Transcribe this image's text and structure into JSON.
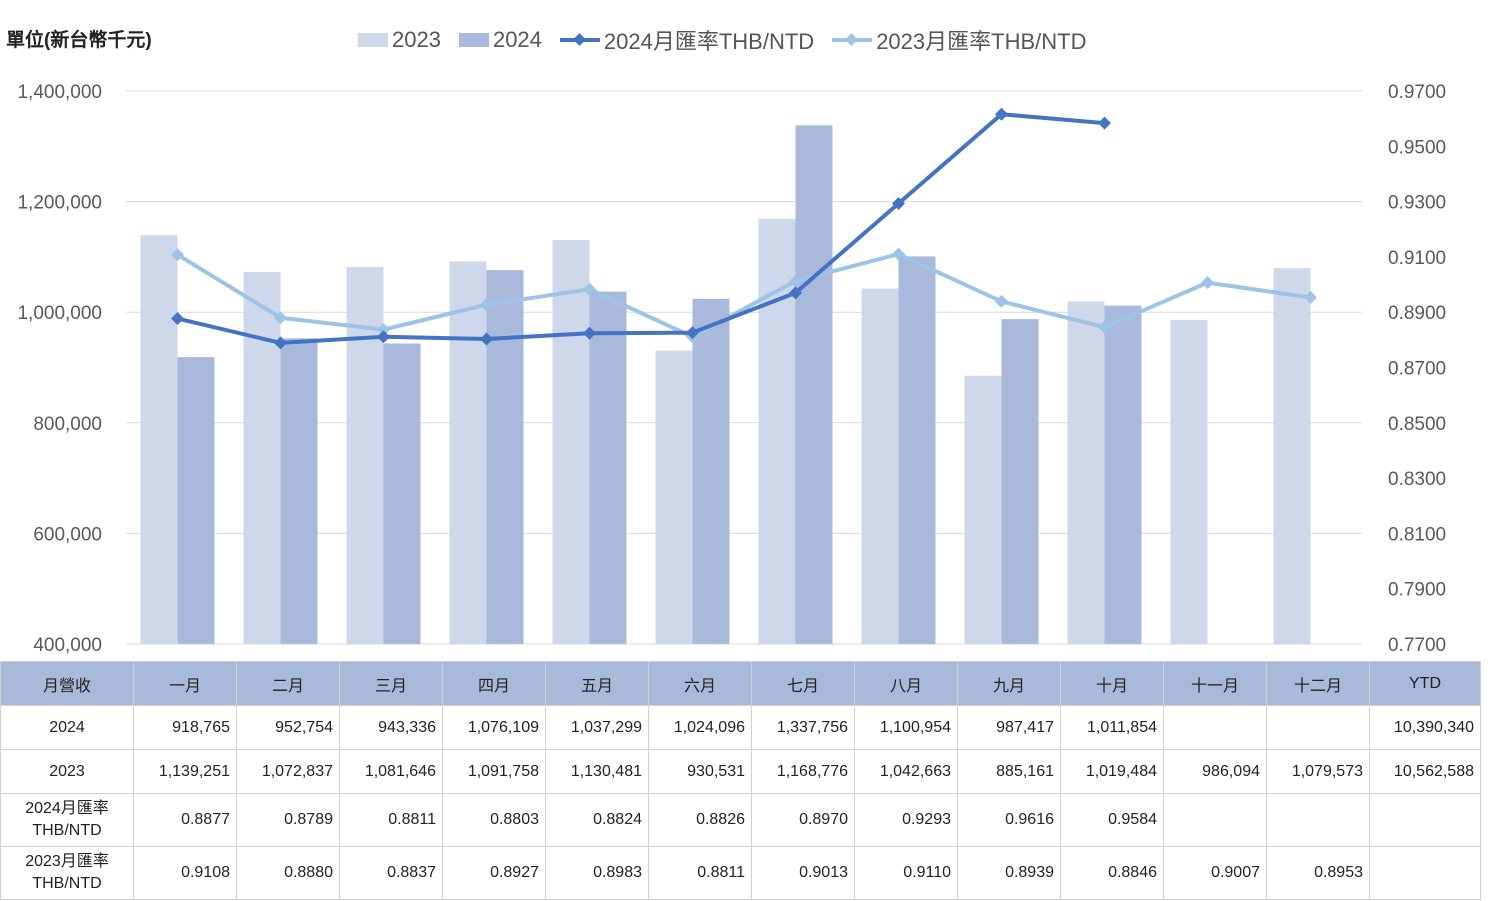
{
  "header": {
    "unit_label": "單位(新台幣千元)"
  },
  "legend": [
    {
      "label": "2023",
      "kind": "bar",
      "color": "#ced8ea"
    },
    {
      "label": "2024",
      "kind": "bar",
      "color": "#a9b9dc"
    },
    {
      "label": "2024月匯率THB/NTD",
      "kind": "line",
      "color": "#4472c4"
    },
    {
      "label": "2023月匯率THB/NTD",
      "kind": "line",
      "color": "#9dc3e6"
    }
  ],
  "chart_data": {
    "type": "bar",
    "categories": [
      "一月",
      "二月",
      "三月",
      "四月",
      "五月",
      "六月",
      "七月",
      "八月",
      "九月",
      "十月",
      "十一月",
      "十二月"
    ],
    "series": [
      {
        "name": "2023",
        "type": "bar",
        "axis": "left",
        "color": "#ced8ea",
        "values": [
          1139251,
          1072837,
          1081646,
          1091758,
          1130481,
          930531,
          1168776,
          1042663,
          885161,
          1019484,
          986094,
          1079573
        ]
      },
      {
        "name": "2024",
        "type": "bar",
        "axis": "left",
        "color": "#a9b9dc",
        "values": [
          918765,
          952754,
          943336,
          1076109,
          1037299,
          1024096,
          1337756,
          1100954,
          987417,
          1011854,
          null,
          null
        ]
      },
      {
        "name": "2024月匯率THB/NTD",
        "type": "line",
        "axis": "right",
        "color": "#4472c4",
        "values": [
          0.8877,
          0.8789,
          0.8811,
          0.8803,
          0.8824,
          0.8826,
          0.897,
          0.9293,
          0.9616,
          0.9584,
          null,
          null
        ]
      },
      {
        "name": "2023月匯率THB/NTD",
        "type": "line",
        "axis": "right",
        "color": "#9dc3e6",
        "values": [
          0.9108,
          0.888,
          0.8837,
          0.8927,
          0.8983,
          0.8811,
          0.9013,
          0.911,
          0.8939,
          0.8846,
          0.9007,
          0.8953
        ]
      }
    ],
    "ylim_left": [
      400000,
      1400000
    ],
    "yticks_left": [
      "400,000",
      "600,000",
      "800,000",
      "1,000,000",
      "1,200,000",
      "1,400,000"
    ],
    "ylim_right": [
      0.77,
      0.97
    ],
    "yticks_right": [
      "0.7700",
      "0.7900",
      "0.8100",
      "0.8300",
      "0.8500",
      "0.8700",
      "0.8900",
      "0.9100",
      "0.9300",
      "0.9500",
      "0.9700"
    ],
    "grid": true,
    "legend_position": "top"
  },
  "table": {
    "header": [
      "月營收",
      "一月",
      "二月",
      "三月",
      "四月",
      "五月",
      "六月",
      "七月",
      "八月",
      "九月",
      "十月",
      "十一月",
      "十二月",
      "YTD"
    ],
    "rows": [
      {
        "label": "2024",
        "cells": [
          "918,765",
          "952,754",
          "943,336",
          "1,076,109",
          "1,037,299",
          "1,024,096",
          "1,337,756",
          "1,100,954",
          "987,417",
          "1,011,854",
          "",
          "",
          "10,390,340"
        ]
      },
      {
        "label": "2023",
        "cells": [
          "1,139,251",
          "1,072,837",
          "1,081,646",
          "1,091,758",
          "1,130,481",
          "930,531",
          "1,168,776",
          "1,042,663",
          "885,161",
          "1,019,484",
          "986,094",
          "1,079,573",
          "10,562,588"
        ]
      },
      {
        "label": "2024月匯率THB/NTD",
        "cells": [
          "0.8877",
          "0.8789",
          "0.8811",
          "0.8803",
          "0.8824",
          "0.8826",
          "0.8970",
          "0.9293",
          "0.9616",
          "0.9584",
          "",
          "",
          ""
        ]
      },
      {
        "label": "2023月匯率THB/NTD",
        "cells": [
          "0.9108",
          "0.8880",
          "0.8837",
          "0.8927",
          "0.8983",
          "0.8811",
          "0.9013",
          "0.9110",
          "0.8939",
          "0.8846",
          "0.9007",
          "0.8953",
          ""
        ]
      }
    ]
  }
}
